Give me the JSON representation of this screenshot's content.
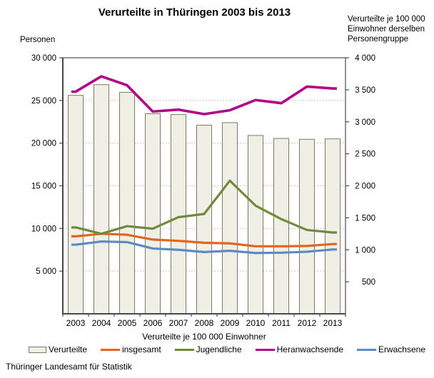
{
  "source": "Thüringer Landesamt für Statistik",
  "chart_data": {
    "type": "bar",
    "subtype": "bar-line-combo",
    "title": "Verurteilte in Thüringen 2003 bis 2013",
    "x_axis_title": "Verurteilte je 100 000 Einwohner",
    "categories": [
      "2003",
      "2004",
      "2005",
      "2006",
      "2007",
      "2008",
      "2009",
      "2010",
      "2011",
      "2012",
      "2013"
    ],
    "left_axis": {
      "unit_label": "Personen",
      "range": [
        0,
        30000
      ],
      "tick_step": 5000,
      "ticks": [
        {
          "value": 30000,
          "label": "30 000"
        },
        {
          "value": 25000,
          "label": "25 000"
        },
        {
          "value": 20000,
          "label": "20 000"
        },
        {
          "value": 15000,
          "label": "15 000"
        },
        {
          "value": 10000,
          "label": "10 000"
        },
        {
          "value": 5000,
          "label": "5 000"
        }
      ]
    },
    "right_axis": {
      "unit_label": "Verurteilte je 100 000\nEinwohner derselben\nPersonengruppe",
      "range": [
        0,
        4000
      ],
      "tick_step": 500,
      "ticks": [
        {
          "value": 4000,
          "label": "4 000"
        },
        {
          "value": 3500,
          "label": "3 500"
        },
        {
          "value": 3000,
          "label": "3 000"
        },
        {
          "value": 2500,
          "label": "2 500"
        },
        {
          "value": 2000,
          "label": "2 000"
        },
        {
          "value": 1500,
          "label": "1 500"
        },
        {
          "value": 1000,
          "label": "1 000"
        },
        {
          "value": 500,
          "label": "500"
        }
      ]
    },
    "bars": {
      "name": "Verurteilte",
      "axis": "left",
      "fill": "#F0EFE5",
      "stroke": "#7B7A5E",
      "values": [
        25600,
        26850,
        25950,
        23450,
        23350,
        22100,
        22400,
        20900,
        20550,
        20450,
        20500
      ]
    },
    "series": [
      {
        "name": "insgesamt",
        "axis": "right",
        "color": "#E2661E",
        "width": 3.2,
        "values": [
          1210,
          1250,
          1235,
          1160,
          1140,
          1110,
          1100,
          1055,
          1055,
          1060,
          1090
        ]
      },
      {
        "name": "Jugendliche",
        "axis": "right",
        "color": "#6F8A3C",
        "width": 3.2,
        "values": [
          1350,
          1250,
          1370,
          1330,
          1510,
          1560,
          2080,
          1690,
          1480,
          1310,
          1270
        ]
      },
      {
        "name": "Erwachsene",
        "axis": "right",
        "color": "#5B8AC4",
        "width": 3.2,
        "values": [
          1080,
          1130,
          1120,
          1020,
          1000,
          965,
          985,
          950,
          955,
          970,
          1005
        ]
      },
      {
        "name": "Heranwachsende",
        "axis": "right",
        "color": "#B00087",
        "width": 3.6,
        "values": [
          3470,
          3710,
          3570,
          3160,
          3190,
          3120,
          3180,
          3340,
          3290,
          3550,
          3520
        ]
      }
    ],
    "legend": [
      {
        "label": "Verurteilte",
        "swatch": "bar"
      },
      {
        "label": "insgesamt",
        "swatch": "line",
        "series": "insgesamt"
      },
      {
        "label": "Jugendliche",
        "swatch": "line",
        "series": "Jugendliche"
      },
      {
        "label": "Heranwachsende",
        "swatch": "line",
        "series": "Heranwachsende"
      },
      {
        "label": "Erwachsene",
        "swatch": "line",
        "series": "Erwachsene"
      }
    ],
    "grid": {
      "horizontal": "dashed",
      "color": "#C4C4C4"
    },
    "frame_color": "#4A4A4A"
  }
}
